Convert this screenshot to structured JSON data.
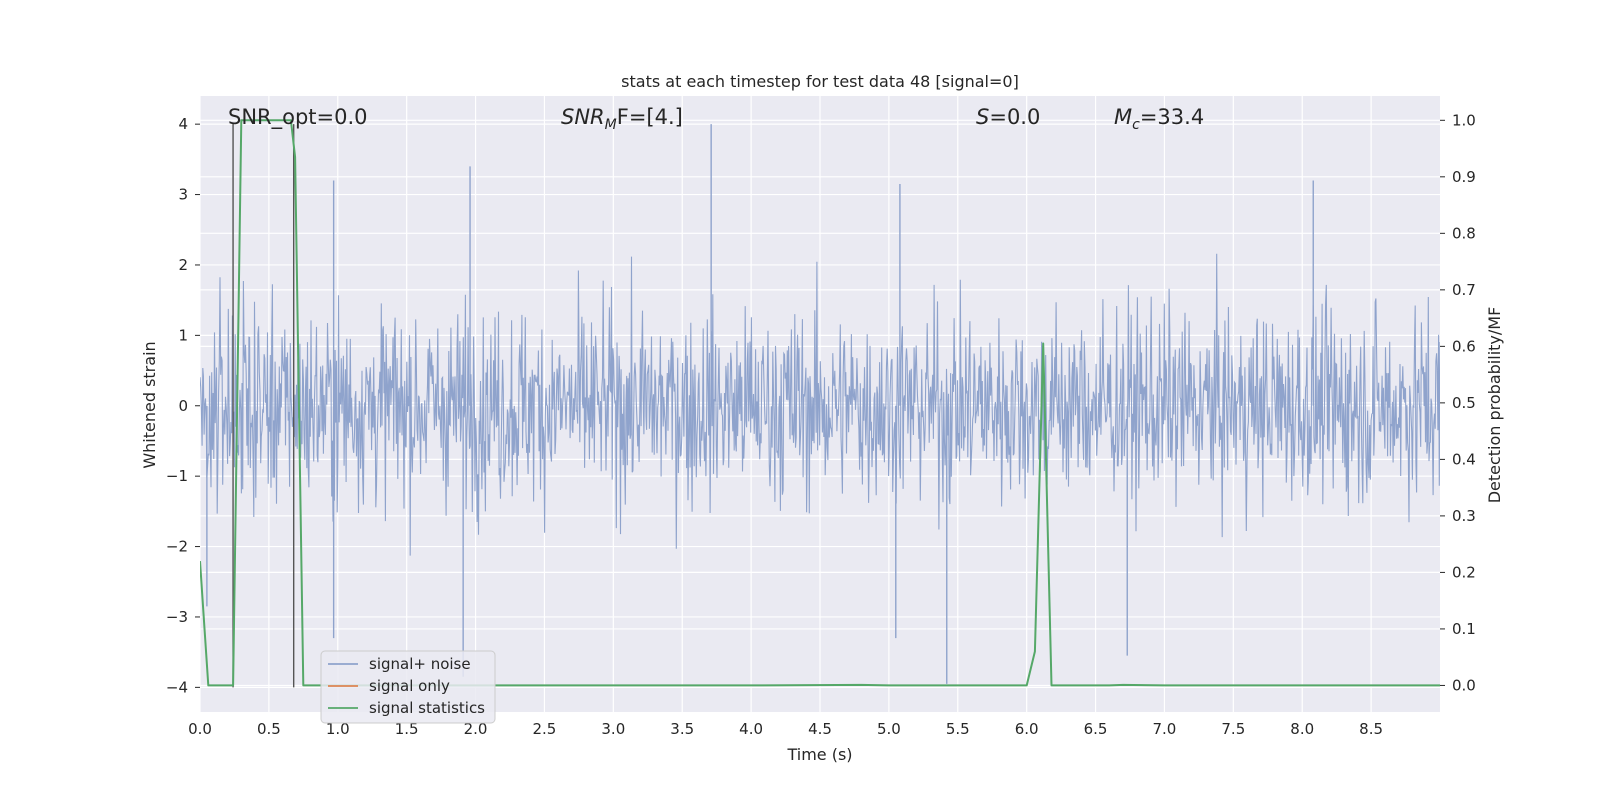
{
  "chart_data": {
    "type": "line",
    "title": "stats at each timestep for test data 48 [signal=0]",
    "xlabel": "Time (s)",
    "ylabel": "Whitened strain",
    "y2label": "Detection probability/MF",
    "xlim": [
      0.0,
      9.0
    ],
    "ylim": [
      -4.35,
      4.4
    ],
    "y2lim": [
      -0.047,
      1.043
    ],
    "x_ticks": [
      "0.0",
      "0.5",
      "1.0",
      "1.5",
      "2.0",
      "2.5",
      "3.0",
      "3.5",
      "4.0",
      "4.5",
      "5.0",
      "5.5",
      "6.0",
      "6.5",
      "7.0",
      "7.5",
      "8.0",
      "8.5"
    ],
    "y_ticks": [
      "−4",
      "−3",
      "−2",
      "−1",
      "0",
      "1",
      "2",
      "3",
      "4"
    ],
    "y2_ticks": [
      "0.0",
      "0.1",
      "0.2",
      "0.3",
      "0.4",
      "0.5",
      "0.6",
      "0.7",
      "0.8",
      "0.9",
      "1.0"
    ],
    "grid": true,
    "legend_position": "lower-left",
    "annotations": {
      "snr_opt": "SNR_opt=0.0",
      "snr_mf_name": "SNR",
      "snr_mf_sub": "M",
      "snr_mf_value": "F=[4.]",
      "s_name": "S",
      "s_value": "=0.0",
      "mc_name": "M",
      "mc_sub": "c",
      "mc_value": "=33.4"
    },
    "vertical_lines": [
      0.24,
      0.68
    ],
    "colors": {
      "noise": "#8fa3cc",
      "signal_only": "#dd8452",
      "statistics": "#55a868",
      "background": "#eaeaf2",
      "grid": "#ffffff",
      "vline": "#555555"
    },
    "series": [
      {
        "name": "signal+ noise",
        "axis": "left",
        "description": "whitened strain, dense noise filling roughly -2 to 2 with spikes",
        "envelope_typical": [
          -2.2,
          2.4
        ],
        "extreme_peaks": [
          {
            "x": 3.71,
            "y": 4.0
          },
          {
            "x": 1.96,
            "y": 3.4
          },
          {
            "x": 0.97,
            "y": 3.2
          },
          {
            "x": 5.08,
            "y": 3.15
          },
          {
            "x": 8.08,
            "y": 3.2
          },
          {
            "x": 5.42,
            "y": -3.95
          },
          {
            "x": 1.91,
            "y": -3.85
          },
          {
            "x": 6.73,
            "y": -3.55
          },
          {
            "x": 0.05,
            "y": -2.85
          },
          {
            "x": 5.05,
            "y": -3.3
          },
          {
            "x": 0.97,
            "y": -3.3
          }
        ]
      },
      {
        "name": "signal only",
        "axis": "left",
        "x": [],
        "y": []
      },
      {
        "name": "signal statistics",
        "axis": "right",
        "x": [
          0.0,
          0.06,
          0.12,
          0.18,
          0.24,
          0.3,
          0.36,
          0.42,
          0.48,
          0.54,
          0.6,
          0.66,
          0.69,
          0.75,
          1.0,
          2.0,
          3.0,
          4.0,
          4.8,
          5.0,
          5.5,
          6.0,
          6.06,
          6.12,
          6.18,
          6.24,
          6.6,
          6.7,
          7.0,
          8.0,
          9.0
        ],
        "y": [
          0.22,
          0.0,
          0.0,
          0.0,
          0.0,
          1.0,
          1.0,
          1.0,
          1.0,
          1.0,
          1.0,
          1.0,
          0.935,
          0.0,
          0.0,
          0.0,
          0.0,
          0.0,
          0.001,
          0.0,
          0.0,
          0.0,
          0.06,
          0.605,
          0.0,
          0.0,
          0.0,
          0.001,
          0.0,
          0.0,
          0.0
        ]
      }
    ]
  }
}
